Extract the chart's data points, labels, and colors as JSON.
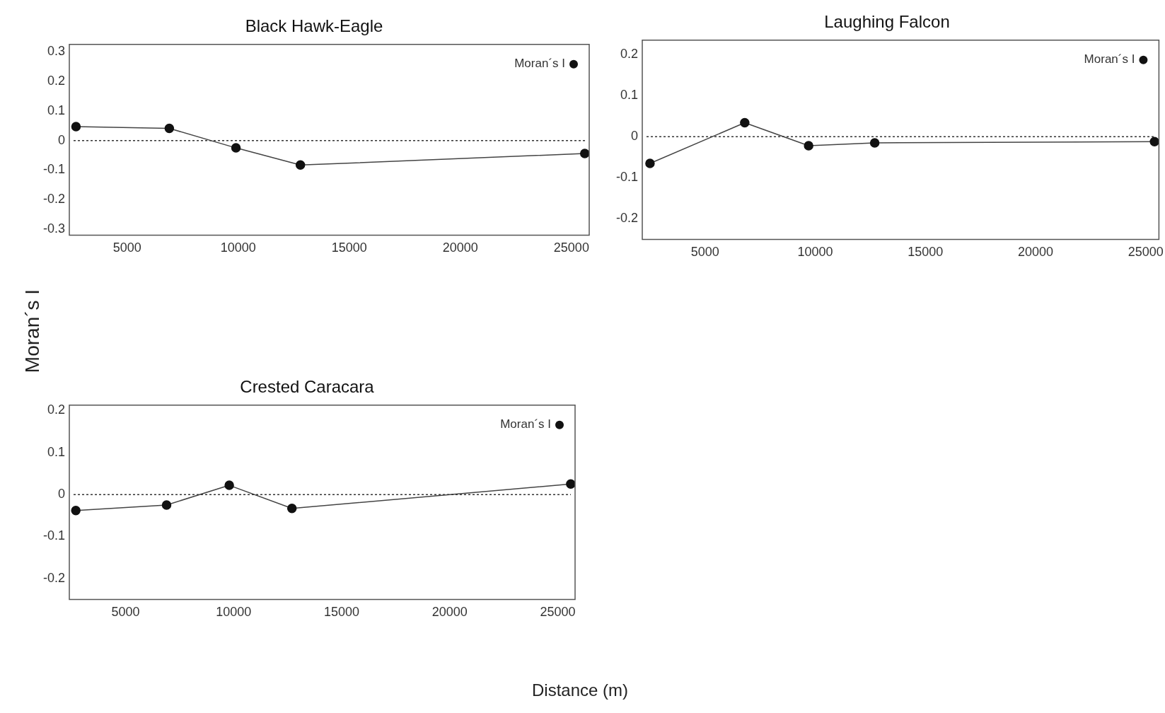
{
  "chart_data": [
    {
      "type": "line",
      "title": "Black Hawk-Eagle",
      "ylabel": "Moran´s I",
      "x": [
        2700,
        6900,
        9900,
        12800,
        25600
      ],
      "series": [
        {
          "name": "Moran´s I",
          "color": "#111111",
          "values": [
            0.047,
            0.041,
            -0.025,
            -0.083,
            -0.044
          ]
        }
      ],
      "xlim": [
        2400,
        25800
      ],
      "xticks": [
        5000,
        10000,
        15000,
        20000,
        25000
      ],
      "ylim": [
        -0.32,
        0.325
      ],
      "yticks": [
        -0.3,
        -0.2,
        -0.1,
        0,
        0.1,
        0.2,
        0.3
      ],
      "grid": false,
      "legend": "top right",
      "marker": "circle",
      "line_style": "solid",
      "ref_lines": [
        {
          "axis": "y",
          "value": 0,
          "line_style": "dotted",
          "color": "#333333"
        }
      ]
    },
    {
      "type": "line",
      "title": "Laughing Falcon",
      "x": [
        2500,
        6800,
        9700,
        12700,
        25400
      ],
      "series": [
        {
          "name": "Moran´s I",
          "color": "#111111",
          "values": [
            -0.065,
            0.034,
            -0.022,
            -0.015,
            -0.012
          ]
        }
      ],
      "xlim": [
        2150,
        25600
      ],
      "xticks": [
        5000,
        10000,
        15000,
        20000,
        25000
      ],
      "ylim": [
        -0.25,
        0.235
      ],
      "yticks": [
        -0.2,
        -0.1,
        0,
        0.1,
        0.2
      ],
      "grid": false,
      "legend": "top right",
      "marker": "circle",
      "line_style": "solid",
      "ref_lines": [
        {
          "axis": "y",
          "value": 0,
          "line_style": "dotted",
          "color": "#333333"
        }
      ]
    },
    {
      "type": "line",
      "title": "Crested Caracara",
      "xlabel": "Distance (m)",
      "x": [
        2700,
        6900,
        9800,
        12700,
        25600
      ],
      "series": [
        {
          "name": "Moran´s I",
          "color": "#111111",
          "values": [
            -0.038,
            -0.025,
            0.022,
            -0.033,
            0.025
          ]
        }
      ],
      "xlim": [
        2400,
        25800
      ],
      "xticks": [
        5000,
        10000,
        15000,
        20000,
        25000
      ],
      "ylim": [
        -0.25,
        0.213
      ],
      "yticks": [
        -0.2,
        -0.1,
        0,
        0.1,
        0.2
      ],
      "grid": false,
      "legend": "top right",
      "marker": "circle",
      "line_style": "solid",
      "ref_lines": [
        {
          "axis": "y",
          "value": 0,
          "line_style": "dotted",
          "color": "#333333"
        }
      ]
    }
  ]
}
